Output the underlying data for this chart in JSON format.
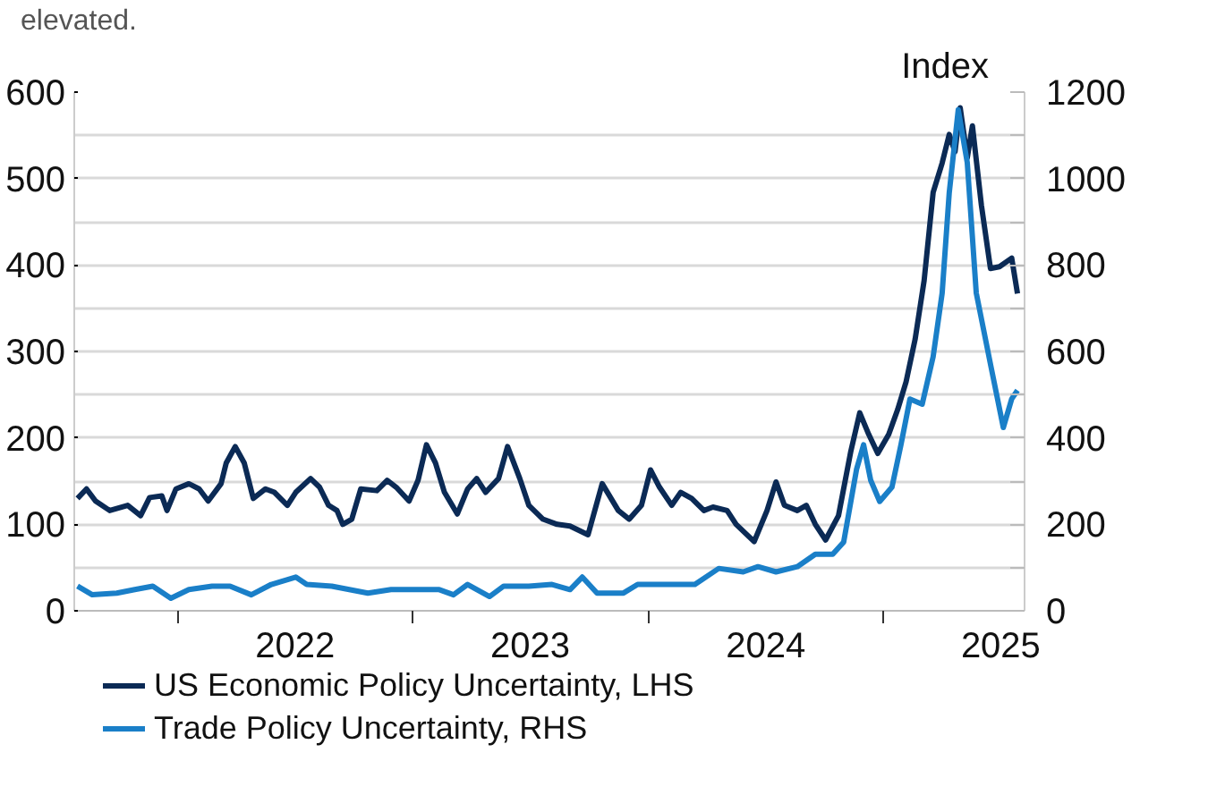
{
  "chart_data": {
    "type": "line",
    "annotations": [
      "elevated."
    ],
    "y2label": "Index",
    "xlim": [
      "2021-07-24",
      "2025-08-08"
    ],
    "xticks": [
      {
        "value": "2022-01-01",
        "label": null
      },
      {
        "value": "2022-07-02",
        "label": "2022"
      },
      {
        "value": "2023-01-01",
        "label": null
      },
      {
        "value": "2023-07-02",
        "label": "2023"
      },
      {
        "value": "2024-01-01",
        "label": null
      },
      {
        "value": "2024-07-02",
        "label": "2024"
      },
      {
        "value": "2025-01-01",
        "label": null
      },
      {
        "value": "2025-07-02",
        "label": "2025"
      }
    ],
    "ylim": [
      0,
      600
    ],
    "yticks": [
      0,
      100,
      200,
      300,
      400,
      500,
      600
    ],
    "y2lim": [
      0,
      1200
    ],
    "y2ticks": [
      0,
      {
        "value": 100,
        "label": null
      },
      200,
      {
        "value": 300,
        "label": null
      },
      400,
      {
        "value": 500,
        "label": null
      },
      600,
      {
        "value": 700,
        "label": null
      },
      800,
      {
        "value": 900,
        "label": null
      },
      1000,
      {
        "value": 1100,
        "label": null
      },
      1200
    ],
    "grid": "y",
    "legend": "bottom",
    "line_style": "solid",
    "series": [
      {
        "name": "US Economic Policy Uncertainty, LHS",
        "color": "#0b2a55",
        "x": [
          "2021-07-29",
          "2021-08-12",
          "2021-08-26",
          "2021-09-17",
          "2021-10-15",
          "2021-11-04",
          "2021-11-18",
          "2021-12-07",
          "2021-12-15",
          "2021-12-29",
          "2022-01-18",
          "2022-02-03",
          "2022-02-17",
          "2022-03-09",
          "2022-03-17",
          "2022-03-31",
          "2022-04-14",
          "2022-04-28",
          "2022-05-17",
          "2022-05-31",
          "2022-06-20",
          "2022-07-03",
          "2022-07-26",
          "2022-08-09",
          "2022-08-23",
          "2022-09-05",
          "2022-09-14",
          "2022-09-28",
          "2022-10-12",
          "2022-11-06",
          "2022-11-22",
          "2022-12-06",
          "2022-12-26",
          "2023-01-09",
          "2023-01-22",
          "2023-02-05",
          "2023-02-19",
          "2023-03-11",
          "2023-03-27",
          "2023-04-10",
          "2023-04-24",
          "2023-05-14",
          "2023-05-28",
          "2023-06-16",
          "2023-06-30",
          "2023-07-22",
          "2023-08-13",
          "2023-09-02",
          "2023-09-30",
          "2023-10-22",
          "2023-11-16",
          "2023-12-03",
          "2023-12-22",
          "2024-01-05",
          "2024-01-19",
          "2024-02-07",
          "2024-02-21",
          "2024-03-09",
          "2024-03-28",
          "2024-04-11",
          "2024-05-03",
          "2024-05-17",
          "2024-06-14",
          "2024-07-04",
          "2024-07-18",
          "2024-07-31",
          "2024-08-20",
          "2024-09-03",
          "2024-09-17",
          "2024-10-03",
          "2024-10-23",
          "2024-11-11",
          "2024-11-25",
          "2024-12-09",
          "2024-12-23",
          "2025-01-09",
          "2025-01-23",
          "2025-02-05",
          "2025-02-19",
          "2025-03-05",
          "2025-03-19",
          "2025-04-02",
          "2025-04-13",
          "2025-04-22",
          "2025-04-30",
          "2025-05-11",
          "2025-05-19",
          "2025-06-02",
          "2025-06-16",
          "2025-06-30",
          "2025-07-19",
          "2025-07-28"
        ],
        "values": [
          130,
          141,
          127,
          116,
          122,
          110,
          131,
          133,
          116,
          141,
          147,
          141,
          127,
          147,
          171,
          190,
          171,
          130,
          141,
          137,
          122,
          137,
          153,
          143,
          122,
          116,
          100,
          106,
          141,
          139,
          151,
          143,
          127,
          151,
          192,
          171,
          137,
          112,
          141,
          153,
          137,
          153,
          190,
          153,
          122,
          106,
          100,
          98,
          88,
          147,
          116,
          106,
          122,
          163,
          143,
          122,
          137,
          130,
          116,
          120,
          116,
          100,
          80,
          116,
          149,
          122,
          116,
          122,
          100,
          82,
          110,
          184,
          229,
          204,
          182,
          204,
          233,
          265,
          314,
          382,
          484,
          518,
          551,
          531,
          582,
          524,
          561,
          469,
          396,
          398,
          408,
          367
        ]
      },
      {
        "name": "Trade Policy Uncertainty, RHS",
        "color": "#1a7fc8",
        "axis": "y2",
        "x": [
          "2021-07-29",
          "2021-08-21",
          "2021-09-28",
          "2021-10-26",
          "2021-11-23",
          "2021-12-21",
          "2022-01-18",
          "2022-02-23",
          "2022-03-23",
          "2022-04-25",
          "2022-05-26",
          "2022-07-03",
          "2022-07-20",
          "2022-08-28",
          "2022-10-23",
          "2022-11-28",
          "2023-01-03",
          "2023-02-11",
          "2023-03-05",
          "2023-03-27",
          "2023-04-30",
          "2023-05-22",
          "2023-06-30",
          "2023-08-05",
          "2023-09-02",
          "2023-09-21",
          "2023-10-14",
          "2023-11-24",
          "2023-12-16",
          "2024-01-27",
          "2024-03-14",
          "2024-04-20",
          "2024-05-28",
          "2024-06-20",
          "2024-07-18",
          "2024-08-20",
          "2024-09-17",
          "2024-10-14",
          "2024-10-31",
          "2024-11-20",
          "2024-12-01",
          "2024-12-12",
          "2024-12-26",
          "2025-01-14",
          "2025-01-28",
          "2025-02-11",
          "2025-03-02",
          "2025-03-19",
          "2025-04-02",
          "2025-04-13",
          "2025-04-27",
          "2025-05-11",
          "2025-05-25",
          "2025-06-16",
          "2025-07-06",
          "2025-07-19",
          "2025-07-28"
        ],
        "values": [
          57,
          37,
          41,
          49,
          57,
          29,
          49,
          57,
          57,
          37,
          61,
          78,
          61,
          57,
          41,
          49,
          49,
          49,
          37,
          61,
          33,
          57,
          57,
          61,
          49,
          78,
          41,
          41,
          61,
          61,
          61,
          98,
          90,
          102,
          90,
          102,
          131,
          131,
          159,
          327,
          384,
          302,
          253,
          286,
          384,
          490,
          478,
          588,
          735,
          967,
          1159,
          1037,
          735,
          571,
          424,
          490,
          510
        ]
      }
    ]
  }
}
